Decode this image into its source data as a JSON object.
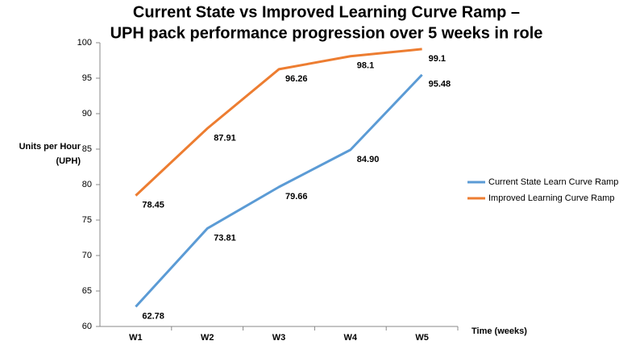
{
  "chart_data": {
    "type": "line",
    "title": [
      "Current State vs Improved Learning Curve Ramp –",
      "UPH pack performance progression over 5 weeks in role"
    ],
    "y_label": [
      "Units per Hour",
      "(UPH)"
    ],
    "x_label": "Time (weeks)",
    "categories": [
      "W1",
      "W2",
      "W3",
      "W4",
      "W5"
    ],
    "series": [
      {
        "name": "Current State Learn Curve Ramp",
        "color": "#5b9bd5",
        "values": [
          62.78,
          73.81,
          79.66,
          84.9,
          95.48
        ],
        "value_labels": [
          "62.78",
          "73.81",
          "79.66",
          "84.90",
          "95.48"
        ]
      },
      {
        "name": "Improved Learning Curve Ramp",
        "color": "#ed7d31",
        "values": [
          78.45,
          87.91,
          96.26,
          98.1,
          99.1
        ]
      }
    ],
    "ylim": [
      60,
      100
    ],
    "yticks": [
      60,
      65,
      70,
      75,
      80,
      85,
      90,
      95,
      100
    ],
    "grid": false,
    "legend": "right"
  }
}
